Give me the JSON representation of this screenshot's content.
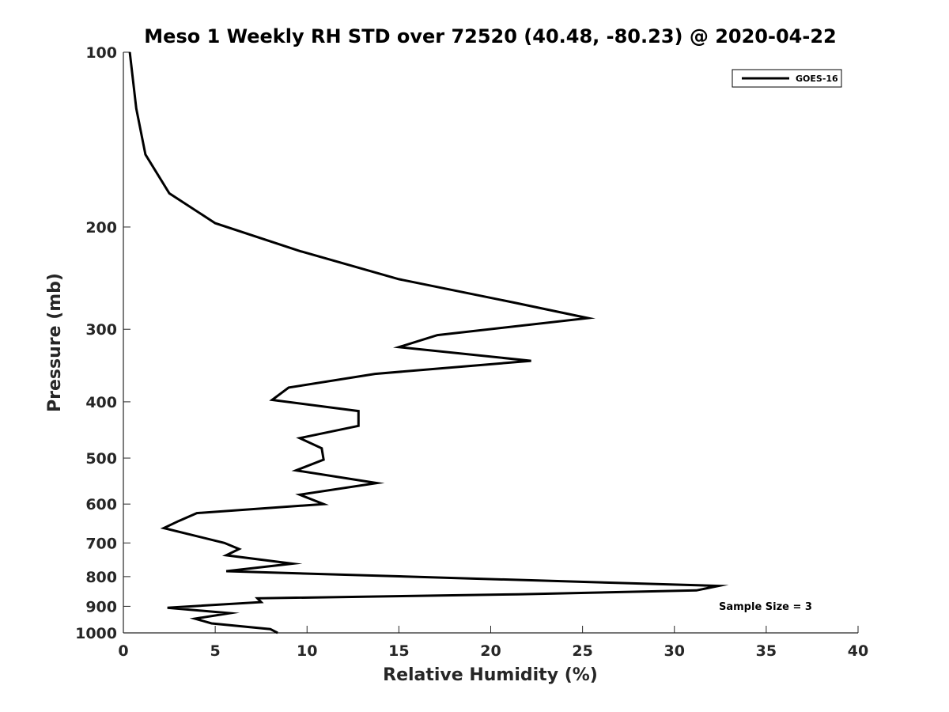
{
  "chart_data": {
    "type": "line",
    "title": "Meso 1 Weekly RH STD over 72520 (40.48, -80.23) @ 2020-04-22",
    "xlabel": "Relative Humidity (%)",
    "ylabel": "Pressure (mb)",
    "xlim": [
      0,
      40
    ],
    "ylim": [
      100,
      1000
    ],
    "yscale": "log",
    "y_reversed": true,
    "xticks": [
      0,
      5,
      10,
      15,
      20,
      25,
      30,
      35,
      40
    ],
    "yticks": [
      100,
      200,
      300,
      400,
      500,
      600,
      700,
      800,
      900,
      1000
    ],
    "grid": false,
    "legend_position": "top-right",
    "annotation": "Sample Size = 3",
    "series": [
      {
        "name": "GOES-16",
        "color": "#000000",
        "points": [
          [
            0.35,
            100
          ],
          [
            0.7,
            125
          ],
          [
            1.2,
            150
          ],
          [
            2.5,
            175
          ],
          [
            5.0,
            197
          ],
          [
            9.6,
            220
          ],
          [
            15.0,
            246
          ],
          [
            21.3,
            270
          ],
          [
            25.3,
            287
          ],
          [
            17.1,
            307
          ],
          [
            15.0,
            322
          ],
          [
            22.2,
            340
          ],
          [
            13.7,
            358
          ],
          [
            9.0,
            378
          ],
          [
            8.1,
            397
          ],
          [
            12.8,
            415
          ],
          [
            12.8,
            440
          ],
          [
            9.6,
            462
          ],
          [
            10.8,
            481
          ],
          [
            10.9,
            503
          ],
          [
            9.4,
            525
          ],
          [
            13.8,
            552
          ],
          [
            9.6,
            578
          ],
          [
            10.9,
            600
          ],
          [
            4.0,
            622
          ],
          [
            3.0,
            642
          ],
          [
            2.2,
            660
          ],
          [
            5.5,
            700
          ],
          [
            6.3,
            717
          ],
          [
            5.6,
            735
          ],
          [
            9.2,
            760
          ],
          [
            5.6,
            783
          ],
          [
            32.4,
            830
          ],
          [
            31.2,
            845
          ],
          [
            21.5,
            858
          ],
          [
            7.3,
            872
          ],
          [
            7.5,
            885
          ],
          [
            2.4,
            905
          ],
          [
            5.8,
            925
          ],
          [
            3.9,
            945
          ],
          [
            4.8,
            963
          ],
          [
            8.0,
            985
          ],
          [
            8.4,
            1000
          ]
        ]
      }
    ]
  }
}
